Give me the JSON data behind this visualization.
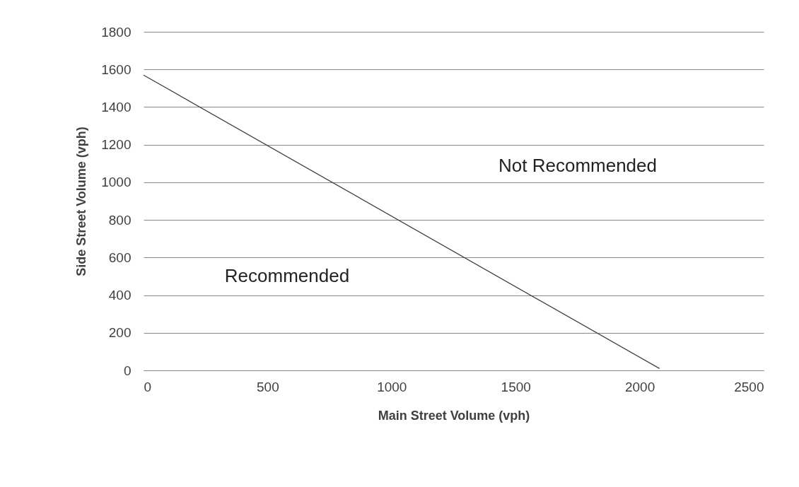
{
  "chart_data": {
    "type": "line",
    "xlabel": "Main Street Volume (vph)",
    "ylabel": "Side Street Volume (vph)",
    "x": [
      0,
      2080
    ],
    "series": [
      {
        "color": "#404040",
        "values": [
          1570,
          10
        ]
      }
    ],
    "xlim": [
      0,
      2500
    ],
    "xticks": [
      0,
      500,
      1000,
      1500,
      2000,
      2500
    ],
    "ylim": [
      0,
      1800
    ],
    "yticks": [
      0,
      200,
      400,
      600,
      800,
      1000,
      1200,
      1400,
      1600,
      1800
    ],
    "grid": "y",
    "marker": "none",
    "line_style": "solid",
    "annotations": [
      "Not Recommended",
      "Recommended"
    ]
  }
}
